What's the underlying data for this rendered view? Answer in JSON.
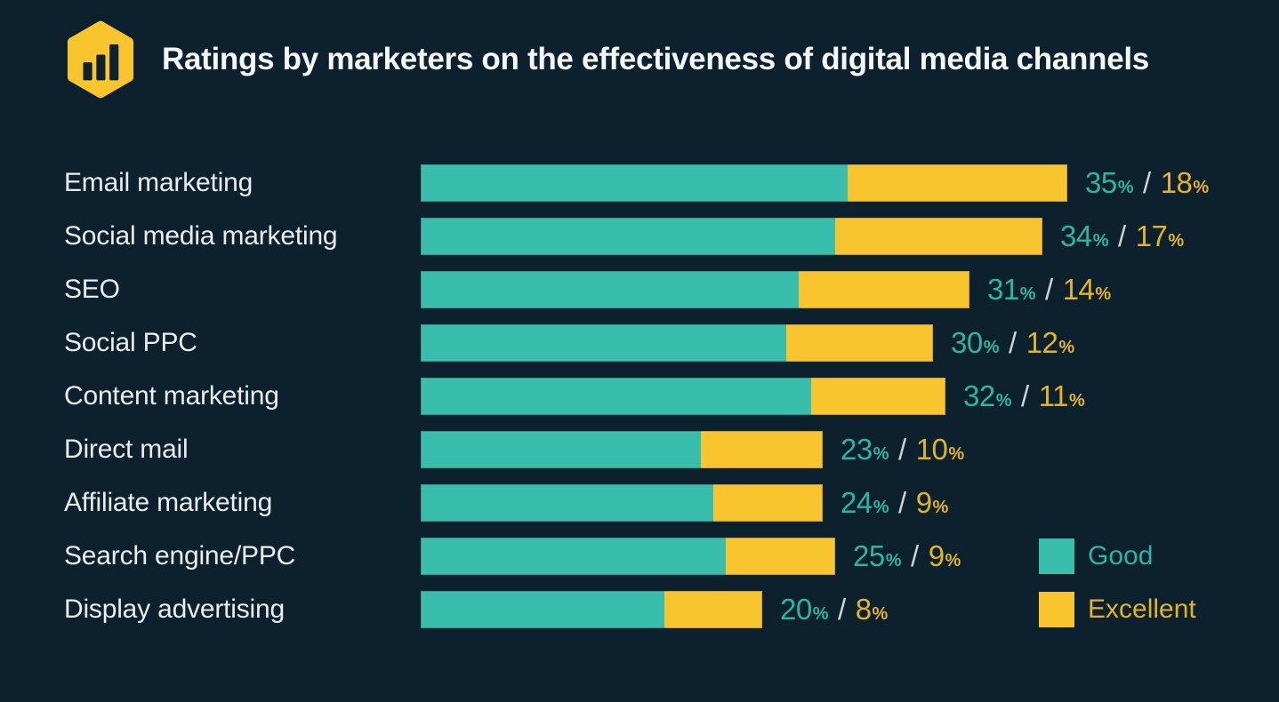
{
  "header": {
    "title": "Ratings by marketers on the effectiveness of digital media channels",
    "logo_icon": "bar-chart-hexagon-icon"
  },
  "colors": {
    "background": "#0c212d",
    "good": "#39bead",
    "excellent": "#f9c52f",
    "good_text": "#2fb3a3",
    "excellent_text": "#e2b32a",
    "title_text": "#f4f7f8",
    "label_text": "#e9edee",
    "separator_text": "#ccd2d5"
  },
  "chart_data": {
    "type": "bar",
    "orientation": "horizontal",
    "stacked": true,
    "title": "Ratings by marketers on the effectiveness of digital media channels",
    "categories": [
      "Email marketing",
      "Social media marketing",
      "SEO",
      "Social PPC",
      "Content marketing",
      "Direct mail",
      "Affiliate marketing",
      "Search engine/PPC",
      "Display advertising"
    ],
    "series": [
      {
        "name": "Good",
        "color": "#39bead",
        "values": [
          35,
          34,
          31,
          30,
          32,
          23,
          24,
          25,
          20
        ]
      },
      {
        "name": "Excellent",
        "color": "#f9c52f",
        "values": [
          18,
          17,
          14,
          12,
          11,
          10,
          9,
          9,
          8
        ]
      }
    ],
    "value_labels": [
      "35% / 18%",
      "34% / 17%",
      "31% / 14%",
      "30% / 12%",
      "32% / 11%",
      "23% / 10%",
      "24% / 9%",
      "25% / 9%",
      "20% / 8%"
    ],
    "value_suffix": "%",
    "value_separator": "/",
    "xlim": [
      0,
      53
    ],
    "grid": false,
    "legend_position": "bottom-right"
  },
  "legend": {
    "items": [
      {
        "label": "Good",
        "color": "#39bead"
      },
      {
        "label": "Excellent",
        "color": "#f9c52f"
      }
    ]
  }
}
